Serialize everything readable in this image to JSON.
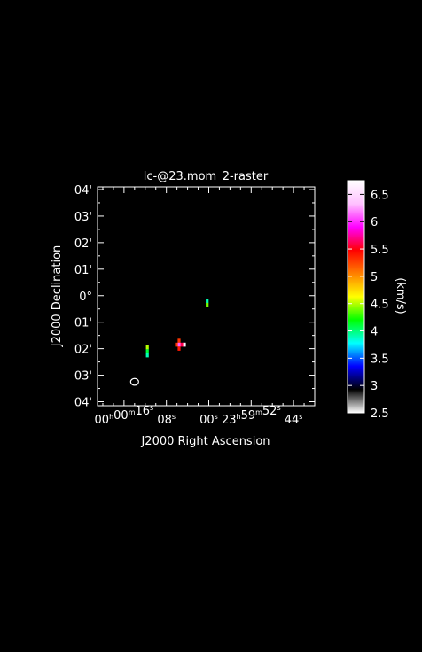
{
  "chart_data": {
    "type": "heatmap",
    "title": "lc-@23.mom_2-raster",
    "xlabel": "J2000 Right Ascension",
    "ylabel": "J2000 Declination",
    "x_ticks": [
      {
        "value": 16,
        "h": "00",
        "m": "00",
        "s": "16"
      },
      {
        "value": 8,
        "h": "",
        "m": "",
        "s": "08"
      },
      {
        "value": 0,
        "h": "",
        "m": "",
        "s": "00"
      },
      {
        "value": -8,
        "h": "23",
        "m": "59",
        "s": "52"
      },
      {
        "value": -16,
        "h": "",
        "m": "",
        "s": "44"
      }
    ],
    "y_ticks": [
      {
        "value": 4,
        "label": "04'"
      },
      {
        "value": 3,
        "label": "03'"
      },
      {
        "value": 2,
        "label": "02'"
      },
      {
        "value": 1,
        "label": "01'"
      },
      {
        "value": 0,
        "label": "0°"
      },
      {
        "value": -1,
        "label": "01'"
      },
      {
        "value": -2,
        "label": "02'"
      },
      {
        "value": -3,
        "label": "03'"
      },
      {
        "value": -4,
        "label": "04'"
      }
    ],
    "xlim": [
      21,
      -20
    ],
    "ylim": [
      -4.15,
      4.1
    ],
    "colorbar": {
      "label": "(km/s)",
      "range": [
        2.5,
        6.75
      ],
      "ticks": [
        {
          "value": 2.5,
          "label": "2.5"
        },
        {
          "value": 3,
          "label": "3"
        },
        {
          "value": 3.5,
          "label": "3.5"
        },
        {
          "value": 4,
          "label": "4"
        },
        {
          "value": 4.5,
          "label": "4.5"
        },
        {
          "value": 5,
          "label": "5"
        },
        {
          "value": 5.5,
          "label": "5.5"
        },
        {
          "value": 6,
          "label": "6"
        },
        {
          "value": 6.5,
          "label": "6.5"
        }
      ],
      "stops": [
        "#ffffff",
        "#000000",
        "#0000ff",
        "#00ffff",
        "#00ff00",
        "#ffff00",
        "#ff8000",
        "#ff0000",
        "#ff00ff",
        "#ffc0ff",
        "#ffffff"
      ]
    },
    "pixels": [
      {
        "ra": 0.3,
        "dec": -0.2,
        "value": 3.9
      },
      {
        "ra": 0.3,
        "dec": -0.35,
        "value": 4.4
      },
      {
        "ra": 11.6,
        "dec": -1.95,
        "value": 4.5
      },
      {
        "ra": 11.6,
        "dec": -2.1,
        "value": 4.1
      },
      {
        "ra": 11.6,
        "dec": -2.25,
        "value": 3.9
      },
      {
        "ra": 5.6,
        "dec": -1.7,
        "value": 5.3
      },
      {
        "ra": 4.6,
        "dec": -1.85,
        "value": 6.7
      },
      {
        "ra": 5.1,
        "dec": -1.85,
        "value": 5.6
      },
      {
        "ra": 5.6,
        "dec": -1.85,
        "value": 6.1
      },
      {
        "ra": 6.1,
        "dec": -1.85,
        "value": 5.3
      },
      {
        "ra": 5.6,
        "dec": -2.0,
        "value": 5.4
      }
    ],
    "beam": {
      "ra": 14.0,
      "dec": -3.25
    }
  }
}
